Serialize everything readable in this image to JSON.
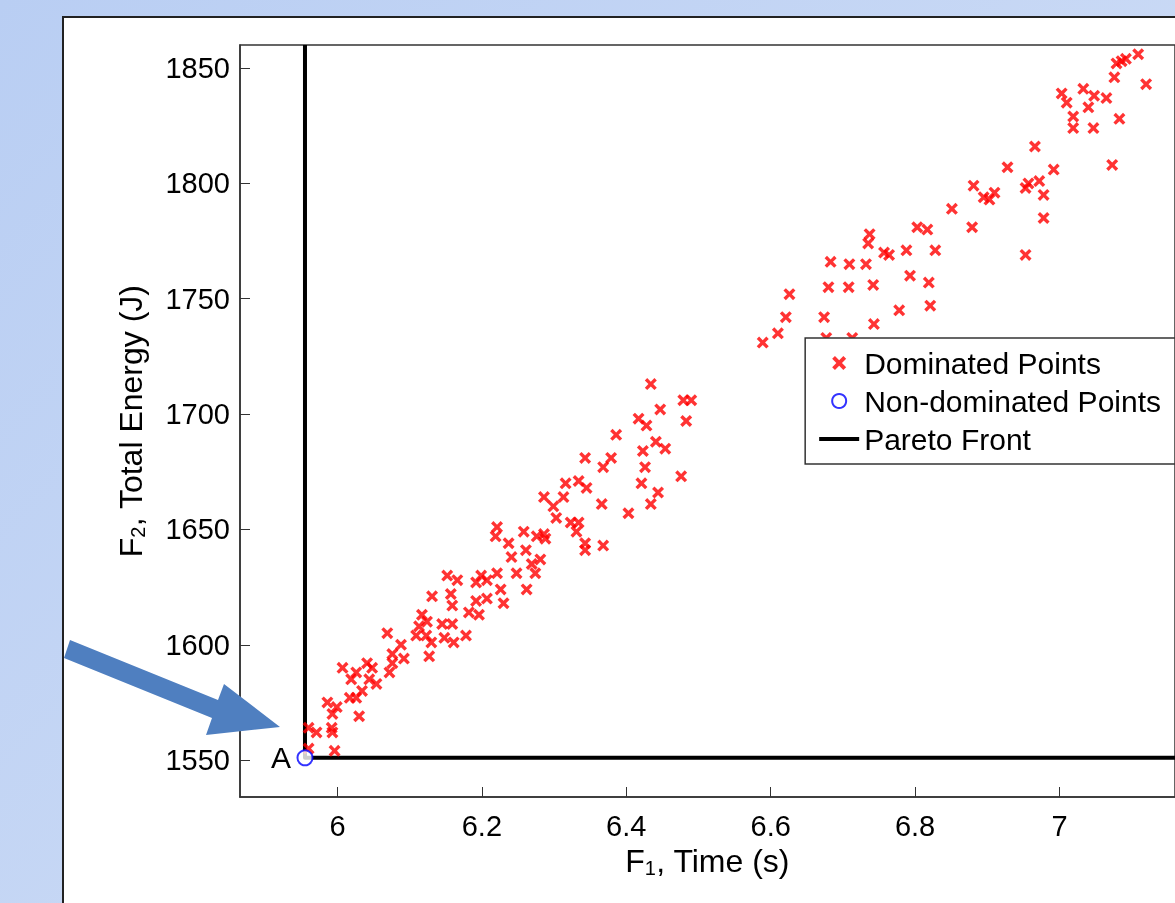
{
  "chart_data": {
    "type": "scatter",
    "xlabel": "F$_{1}$, Time (s)",
    "ylabel": "F$_{2}$, Total Energy (J)",
    "xlim": [
      5.865,
      7.16
    ],
    "ylim": [
      1534,
      1860
    ],
    "xticks": [
      6,
      6.2,
      6.4,
      6.6,
      6.8,
      7
    ],
    "yticks": [
      1550,
      1600,
      1650,
      1700,
      1750,
      1800,
      1850
    ],
    "grid": false,
    "legend": "right",
    "annotations": [
      {
        "text": "A",
        "x": 5.955,
        "y": 1551
      }
    ],
    "series": [
      {
        "name": "Dominated Points",
        "marker": "cross",
        "color": "#ff0000",
        "x": [
          5.96,
          5.971,
          5.992,
          5.993,
          5.996,
          5.96,
          5.986,
          5.999,
          5.993,
          6.03,
          6.007,
          6.019,
          6.026,
          6.041,
          6.048,
          6.044,
          6.054,
          6.034,
          6.017,
          6.026,
          6.072,
          6.076,
          6.069,
          6.076,
          6.088,
          6.092,
          6.109,
          6.113,
          6.117,
          6.124,
          6.123,
          6.13,
          6.127,
          6.145,
          6.148,
          6.159,
          6.161,
          6.178,
          6.131,
          6.157,
          6.159,
          6.152,
          6.166,
          6.192,
          6.199,
          6.192,
          6.182,
          6.196,
          6.207,
          6.221,
          6.226,
          6.23,
          6.248,
          6.261,
          6.262,
          6.241,
          6.237,
          6.269,
          6.221,
          6.219,
          6.258,
          6.276,
          6.286,
          6.288,
          6.281,
          6.274,
          6.207,
          6.434,
          6.447,
          6.479,
          6.49,
          6.483,
          6.417,
          6.428,
          6.386,
          6.441,
          6.454,
          6.423,
          6.426,
          6.421,
          6.444,
          6.476,
          6.434,
          6.403,
          6.366,
          6.379,
          6.368,
          6.343,
          6.334,
          6.345,
          6.316,
          6.313,
          6.286,
          6.299,
          6.303,
          6.323,
          6.334,
          6.331,
          6.343,
          6.343,
          6.368,
          6.851,
          6.803,
          6.817,
          6.828,
          6.788,
          6.757,
          6.764,
          6.737,
          6.735,
          6.732,
          6.709,
          6.683,
          6.68,
          6.708,
          6.742,
          6.793,
          6.819,
          6.821,
          6.778,
          6.743,
          6.674,
          6.677,
          6.626,
          6.621,
          6.61,
          6.589,
          6.713,
          7.109,
          7.092,
          7.086,
          7.079,
          7.12,
          7.076,
          7.033,
          7.048,
          7.065,
          7.003,
          7.01,
          7.04,
          7.019,
          7.019,
          7.047,
          7.083,
          7.073,
          6.966,
          6.992,
          6.972,
          6.957,
          6.953,
          6.978,
          6.978,
          6.953,
          6.928,
          6.881,
          6.895,
          6.903,
          6.91,
          6.879
        ],
        "values": [
          1564,
          1562,
          1564,
          1562,
          1554,
          1555,
          1575,
          1573,
          1570,
          1569,
          1590,
          1585,
          1588,
          1592,
          1590,
          1585,
          1583,
          1580,
          1577,
          1577,
          1588,
          1592,
          1605,
          1596,
          1600,
          1594,
          1604,
          1608,
          1613,
          1610,
          1604,
          1601,
          1595,
          1609,
          1603,
          1609,
          1601,
          1604,
          1621,
          1622,
          1617,
          1630,
          1628,
          1627,
          1630,
          1619,
          1614,
          1613,
          1620,
          1631,
          1624,
          1618,
          1631,
          1641,
          1624,
          1638,
          1644,
          1635,
          1651,
          1647,
          1649,
          1647,
          1648,
          1646,
          1637,
          1631,
          1628,
          1713,
          1702,
          1706,
          1706,
          1697,
          1698,
          1695,
          1691,
          1688,
          1685,
          1684,
          1677,
          1670,
          1666,
          1673,
          1661,
          1657,
          1661,
          1681,
          1677,
          1681,
          1671,
          1668,
          1670,
          1664,
          1664,
          1660,
          1655,
          1653,
          1653,
          1649,
          1644,
          1641,
          1643,
          1789,
          1781,
          1780,
          1771,
          1771,
          1770,
          1769,
          1778,
          1774,
          1765,
          1765,
          1766,
          1755,
          1755,
          1756,
          1760,
          1757,
          1747,
          1745,
          1739,
          1742,
          1733,
          1752,
          1742,
          1735,
          1731,
          1733,
          1856,
          1854,
          1853,
          1852,
          1843,
          1846,
          1841,
          1838,
          1837,
          1839,
          1835,
          1833,
          1829,
          1824,
          1824,
          1828,
          1808,
          1816,
          1806,
          1801,
          1800,
          1798,
          1795,
          1785,
          1769,
          1807,
          1799,
          1794,
          1793,
          1796,
          1781
        ]
      },
      {
        "name": "Non-dominated Points",
        "marker": "circle",
        "color": "#0000ff",
        "x": [
          5.955
        ],
        "values": [
          1551
        ]
      },
      {
        "name": "Pareto Front",
        "type": "line",
        "marker": "none",
        "line_style": "solid",
        "color": "#000000",
        "x": [
          5.955,
          5.955,
          7.16
        ],
        "values": [
          1860,
          1551,
          1551
        ]
      }
    ]
  }
}
